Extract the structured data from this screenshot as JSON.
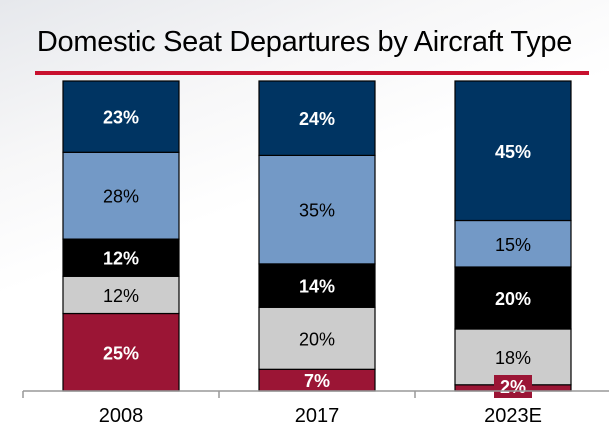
{
  "chart_data": {
    "type": "bar",
    "stacked": true,
    "title": "Domestic Seat Departures by Aircraft Type",
    "categories": [
      "2008",
      "2017",
      "2023E"
    ],
    "ylim": [
      0,
      100
    ],
    "unit": "%",
    "grid": false,
    "legend": "none",
    "series": [
      {
        "color": "#9b1535",
        "label_color": "#ffffff",
        "values": [
          25,
          7,
          2
        ]
      },
      {
        "color": "#cccccc",
        "label_color": "#000000",
        "values": [
          12,
          20,
          18
        ]
      },
      {
        "color": "#000000",
        "label_color": "#ffffff",
        "values": [
          12,
          14,
          20
        ]
      },
      {
        "color": "#7399c6",
        "label_color": "#000000",
        "values": [
          28,
          35,
          15
        ]
      },
      {
        "color": "#003462",
        "label_color": "#ffffff",
        "values": [
          23,
          24,
          45
        ]
      }
    ]
  },
  "colors": {
    "title_rule": "#c8102e"
  }
}
